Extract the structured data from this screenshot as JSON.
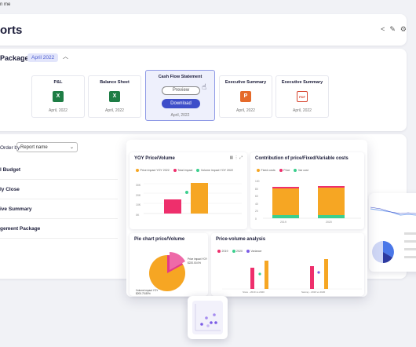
{
  "topbar": {
    "text": "n me"
  },
  "header": {
    "title": "orts",
    "icons": [
      "share-icon",
      "edit-icon",
      "gear-icon"
    ]
  },
  "package": {
    "title": "Package",
    "badge": "April 2022"
  },
  "files": [
    {
      "name": "P&L",
      "date": "April, 2022",
      "icon": "excel-icon"
    },
    {
      "name": "Balance Sheet",
      "date": "April, 2022",
      "icon": "excel-icon"
    },
    {
      "name": "Executive Summary",
      "date": "April, 2022",
      "icon": "powerpoint-icon"
    },
    {
      "name": "Executive Summary",
      "date": "April, 2022",
      "icon": "pdf-icon"
    }
  ],
  "selected_file": {
    "name": "Cash Flow Statement",
    "preview": "Preview",
    "download": "Download",
    "date": "April, 2022"
  },
  "list": {
    "order_label": "Order by",
    "sort_value": "Report name",
    "rows": [
      "l Budget",
      "ly Close",
      "ive Summary",
      "gement Package"
    ]
  },
  "dashboard": {
    "yoy": {
      "title": "YOY Price/Volume",
      "legend": [
        "Price impact YOY 2022",
        "Total impact",
        "Volume impact YOY 2022"
      ],
      "yticks": [
        "30K",
        "20K",
        "10K",
        "0K"
      ]
    },
    "contrib": {
      "title": "Contribution of price/Fixed/Variable costs",
      "legend": [
        "Fixed costs",
        "Price",
        "Var cost"
      ],
      "yticks": [
        "100",
        "80",
        "60",
        "40",
        "20",
        "0"
      ],
      "xticks": [
        "2019",
        "2020"
      ]
    },
    "pie": {
      "title": "Pie chart price/Volume",
      "label_price": "Price impact YOY",
      "label_price_val": "$220.00.0%",
      "label_vol": "Volume impact YOY",
      "label_vol_val": "$200.75.85%"
    },
    "pv": {
      "title": "Price-volume analysis",
      "legend": [
        "2019",
        "2020",
        "Variance"
      ],
      "xticks": [
        "Store - 2019 vs 2020",
        "Sanray - 2019 vs 2020"
      ]
    }
  },
  "colors": {
    "accent": "#3e4ec9",
    "orange": "#f6a623",
    "pink": "#ee2f6c",
    "green": "#3ccf8e",
    "purple": "#7b5ce6"
  }
}
